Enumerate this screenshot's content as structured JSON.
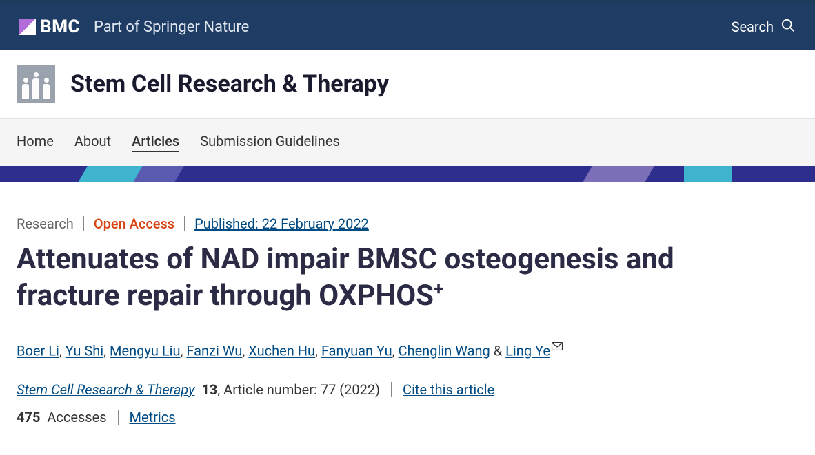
{
  "header": {
    "brand": "BMC",
    "tagline": "Part of Springer Nature",
    "search_label": "Search"
  },
  "journal": {
    "title": "Stem Cell Research & Therapy"
  },
  "nav": {
    "items": [
      "Home",
      "About",
      "Articles",
      "Submission Guidelines"
    ],
    "active_index": 2
  },
  "article": {
    "type": "Research",
    "access": "Open Access",
    "published_label": "Published: 22 February 2022",
    "title_pre": "Attenuates of NAD impair BMSC osteogenesis and fracture repair through OXPHOS",
    "title_sup": "+",
    "authors": [
      "Boer Li",
      "Yu Shi",
      "Mengyu Liu",
      "Fanzi Wu",
      "Xuchen Hu",
      "Fanyuan Yu",
      "Chenglin Wang",
      "Ling Ye"
    ],
    "corresponding_index": 7,
    "journal_name": "Stem Cell Research & Therapy",
    "volume": "13",
    "article_number_text": ", Article number: 77 (2022)",
    "cite_label": "Cite this article",
    "accesses_count": "475",
    "accesses_label": "Accesses",
    "metrics_label": "Metrics"
  },
  "colors": {
    "header_bg": "#1f3c64",
    "link": "#004b83",
    "open_access": "#d64513",
    "title_color": "#2b2b45"
  }
}
